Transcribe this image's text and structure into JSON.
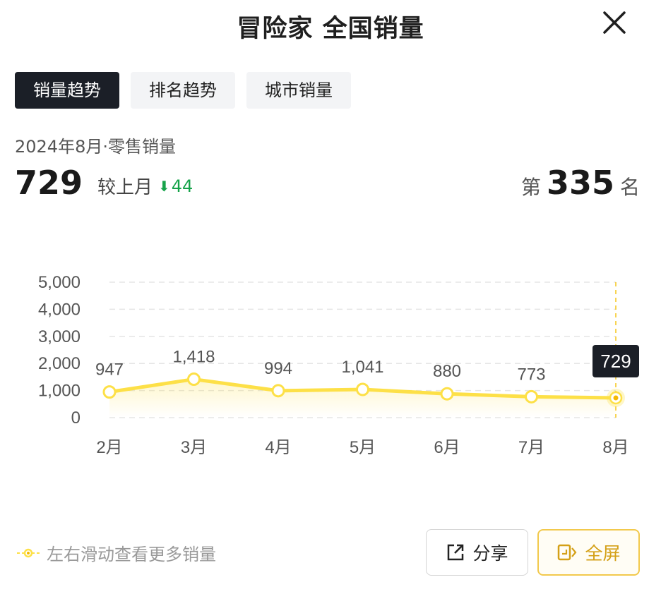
{
  "header": {
    "title": "冒险家 全国销量"
  },
  "tabs": [
    {
      "label": "销量趋势",
      "active": true
    },
    {
      "label": "排名趋势",
      "active": false
    },
    {
      "label": "城市销量",
      "active": false
    }
  ],
  "summary": {
    "period": "2024年8月·零售销量",
    "value": "729",
    "compare_label": "较上月",
    "delta": "44",
    "delta_direction": "down",
    "rank_prefix": "第",
    "rank_value": "335",
    "rank_suffix": "名"
  },
  "chart_data": {
    "type": "line",
    "categories": [
      "2月",
      "3月",
      "4月",
      "5月",
      "6月",
      "7月",
      "8月"
    ],
    "values": [
      947,
      1418,
      994,
      1041,
      880,
      773,
      729
    ],
    "data_labels": [
      "947",
      "1,418",
      "994",
      "1,041",
      "880",
      "773",
      "729"
    ],
    "y_ticks": [
      "0",
      "1,000",
      "2,000",
      "3,000",
      "4,000",
      "5,000"
    ],
    "ylim": [
      0,
      5000
    ],
    "grid": true,
    "highlight_index": 6,
    "line_color": "#fde047"
  },
  "footer": {
    "hint": "左右滑动查看更多销量",
    "share_label": "分享",
    "fullscreen_label": "全屏"
  },
  "colors": {
    "accent": "#fde047",
    "down": "#16a34a",
    "tab_active": "#1b1f27"
  }
}
